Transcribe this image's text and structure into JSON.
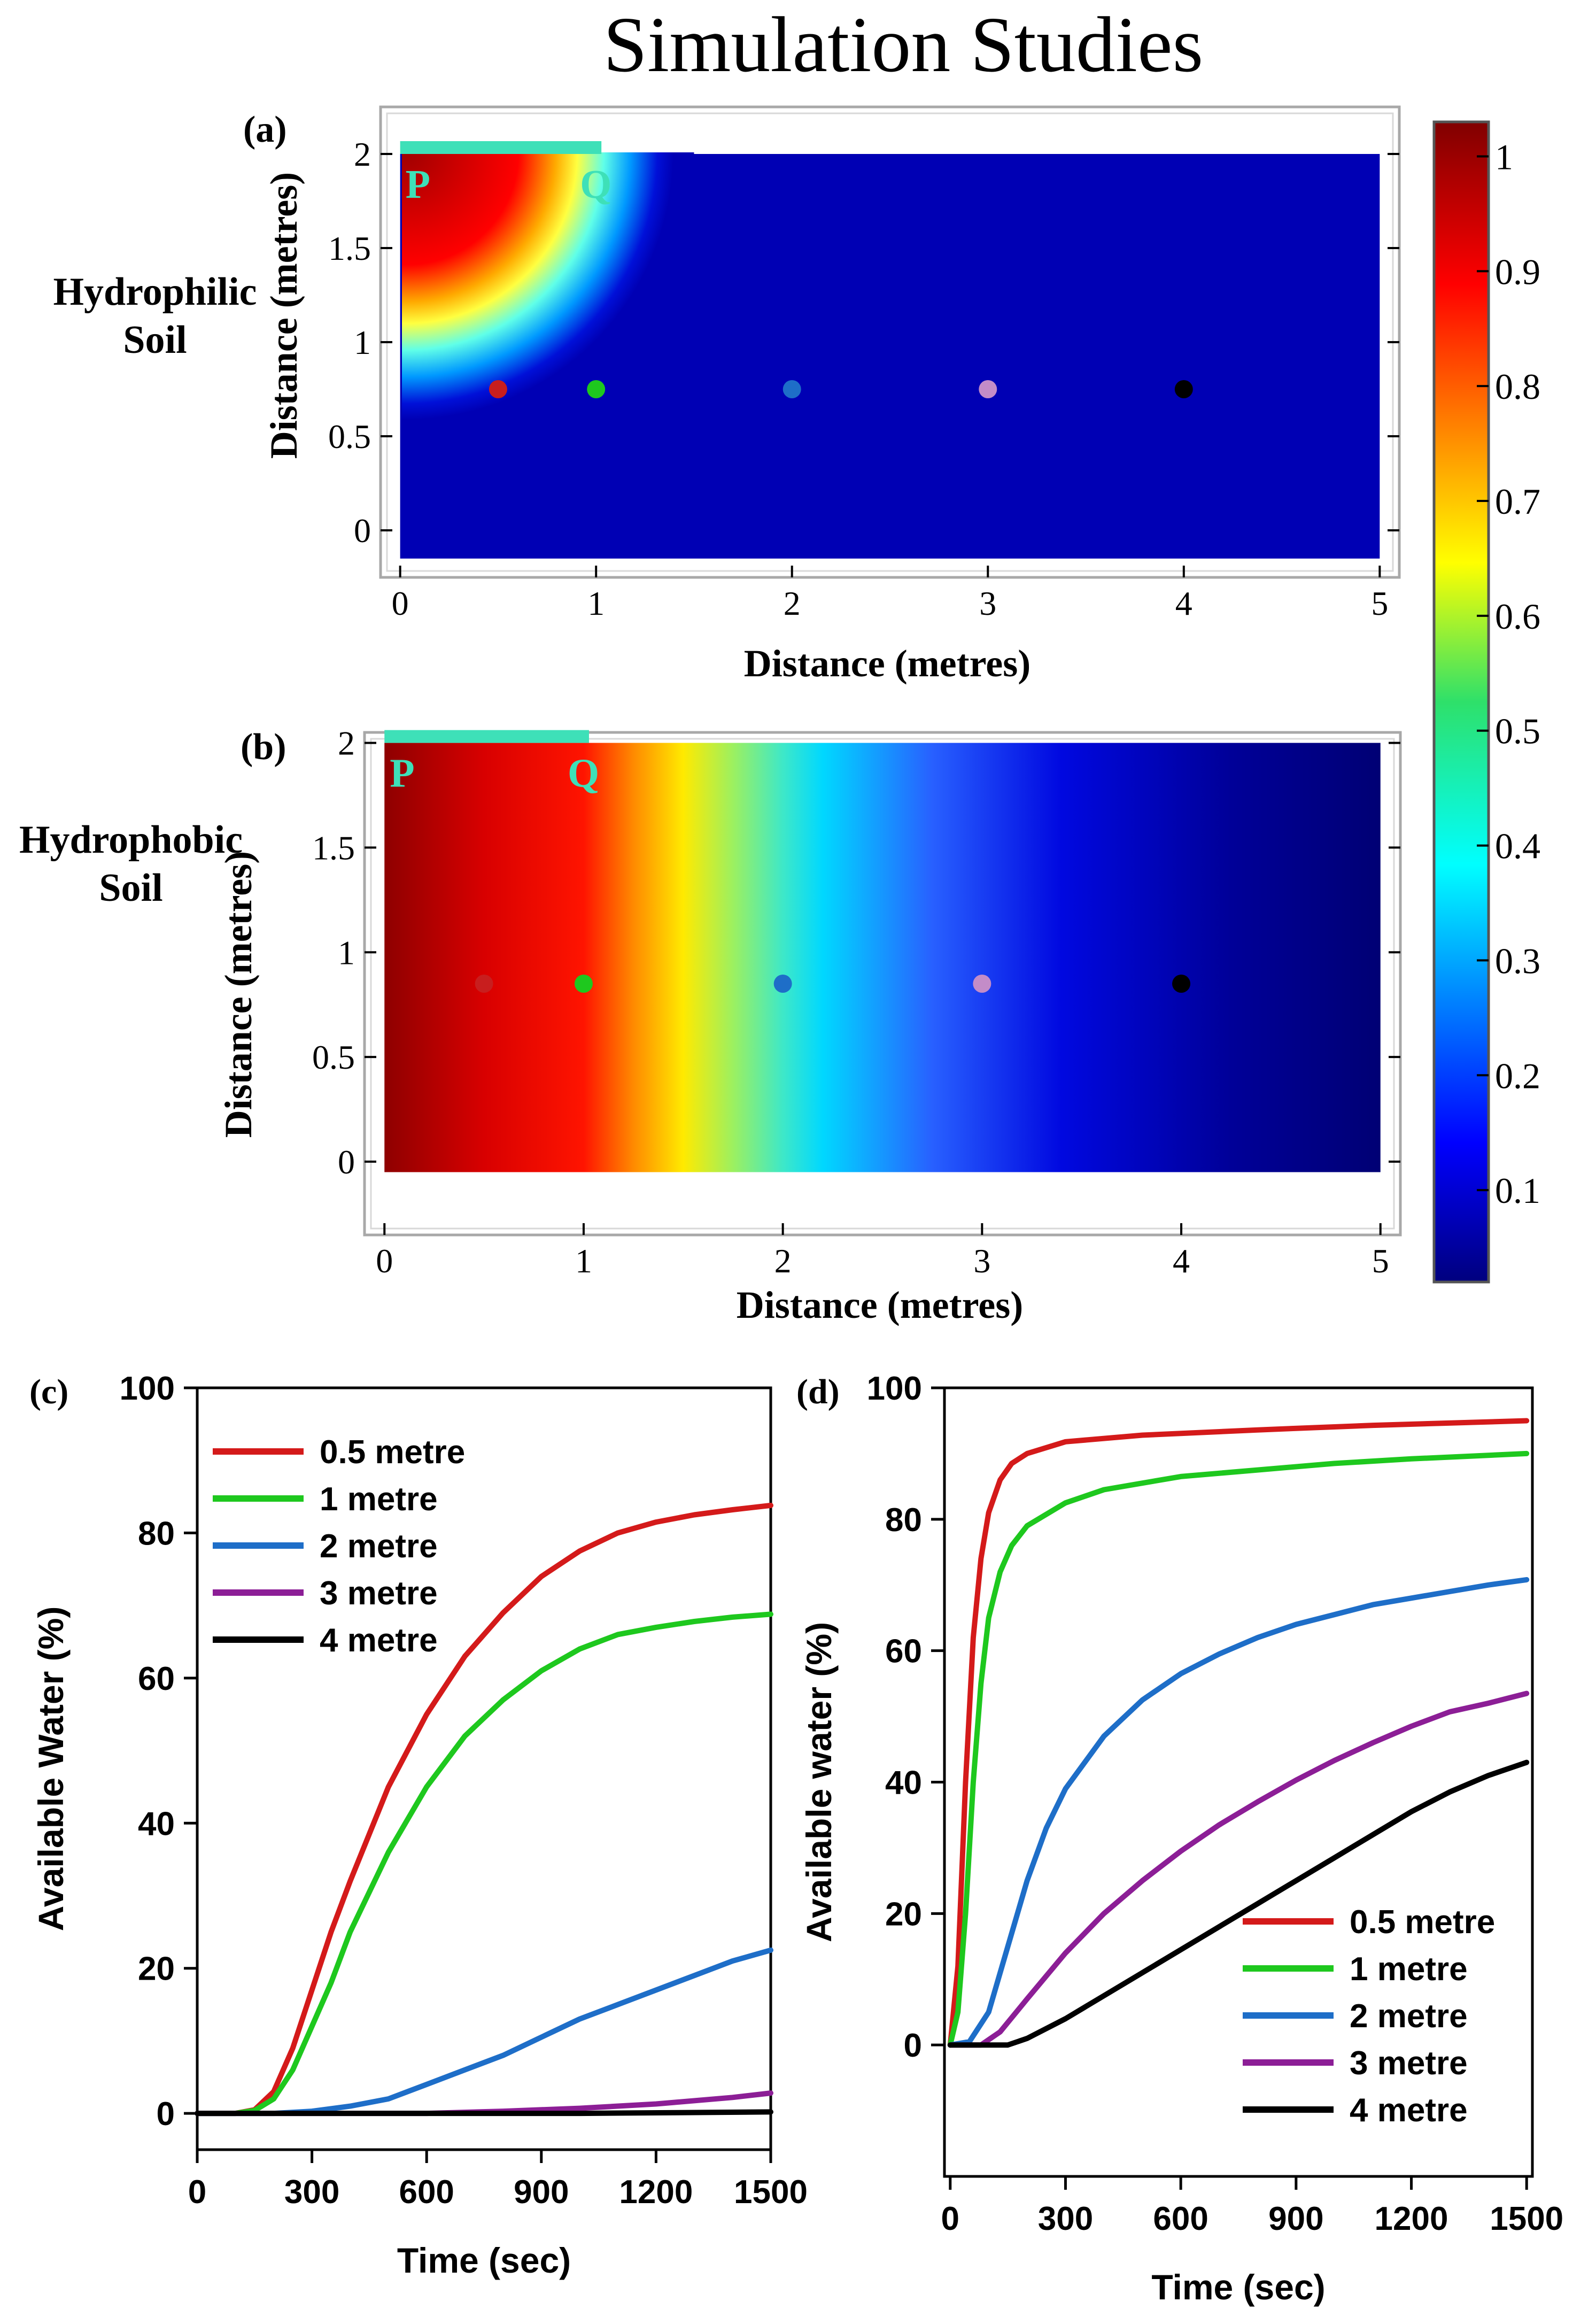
{
  "title": "Simulation Studies",
  "colorbar": {
    "ticks": [
      "1",
      "0.9",
      "0.8",
      "0.7",
      "0.6",
      "0.5",
      "0.4",
      "0.3",
      "0.2",
      "0.1"
    ],
    "tick_values": [
      1,
      0.9,
      0.8,
      0.7,
      0.6,
      0.5,
      0.4,
      0.3,
      0.2,
      0.1
    ],
    "range": [
      0.02,
      1.03
    ]
  },
  "colors": {
    "accent_bar": "#3ee0b8",
    "series": [
      "#d41a1a",
      "#1ec81e",
      "#1e6ec8",
      "#8c1e96",
      "#000000"
    ],
    "dots": [
      "#c81e1e",
      "#1ec81e",
      "#1e6ec8",
      "#c38cc8",
      "#000000"
    ]
  },
  "chart_data": [
    {
      "id": "a",
      "type": "heatmap",
      "panel_label": "(a)",
      "row_label": [
        "Hydrophilic",
        "Soil"
      ],
      "xlabel": "Distance (metres)",
      "ylabel": "Distance (metres)",
      "xticks": [
        "0",
        "1",
        "2",
        "3",
        "4",
        "5"
      ],
      "yticks": [
        "0",
        "0.5",
        "1",
        "1.5",
        "2"
      ],
      "xlim": [
        -0.1,
        5.1
      ],
      "ylim": [
        -0.25,
        2.25
      ],
      "domain_x": [
        0,
        5
      ],
      "domain_y": [
        -0.15,
        2
      ],
      "source_segment": {
        "from": 0,
        "to": 1,
        "labels": [
          "P",
          "Q"
        ]
      },
      "field": "localized saturation around source P-Q, decaying radially to ~0 beyond 1.5 m",
      "probe_points": [
        {
          "x": 0.5,
          "y": 0.75
        },
        {
          "x": 1,
          "y": 0.75
        },
        {
          "x": 2,
          "y": 0.75
        },
        {
          "x": 3,
          "y": 0.75
        },
        {
          "x": 4,
          "y": 0.75
        }
      ]
    },
    {
      "id": "b",
      "type": "heatmap",
      "panel_label": "(b)",
      "row_label": [
        "Hydrophobic",
        "Soil"
      ],
      "xlabel": "Distance (metres)",
      "ylabel": "Distance (metres)",
      "xticks": [
        "0",
        "1",
        "2",
        "3",
        "4",
        "5"
      ],
      "yticks": [
        "0",
        "0.5",
        "1",
        "1.5",
        "2"
      ],
      "xlim": [
        -0.1,
        5.1
      ],
      "ylim": [
        -0.35,
        2.05
      ],
      "domain_x": [
        0,
        5
      ],
      "domain_y": [
        -0.05,
        2
      ],
      "source_segment": {
        "from": 0,
        "to": 1,
        "labels": [
          "P",
          "Q"
        ]
      },
      "field": "lateral saturation front, ~1 at x=0 decreasing to ~0.02 at x=5",
      "probe_points": [
        {
          "x": 0.5,
          "y": 0.85
        },
        {
          "x": 1,
          "y": 0.85
        },
        {
          "x": 2,
          "y": 0.85
        },
        {
          "x": 3,
          "y": 0.85
        },
        {
          "x": 4,
          "y": 0.85
        }
      ]
    },
    {
      "id": "c",
      "type": "line",
      "panel_label": "(c)",
      "xlabel": "Time (sec)",
      "ylabel": "Available Water (%)",
      "xlim": [
        0,
        1500
      ],
      "ylim": [
        -5,
        100
      ],
      "xticks": [
        0,
        300,
        600,
        900,
        1200,
        1500
      ],
      "yticks": [
        0,
        20,
        40,
        60,
        80,
        100
      ],
      "legend_position": "top-left",
      "series": [
        {
          "name": "0.5 metre",
          "points": [
            [
              0,
              0
            ],
            [
              100,
              0
            ],
            [
              150,
              0.5
            ],
            [
              200,
              3
            ],
            [
              250,
              9
            ],
            [
              300,
              17
            ],
            [
              350,
              25
            ],
            [
              400,
              32
            ],
            [
              500,
              45
            ],
            [
              600,
              55
            ],
            [
              700,
              63
            ],
            [
              800,
              69
            ],
            [
              900,
              74
            ],
            [
              1000,
              77.5
            ],
            [
              1100,
              80
            ],
            [
              1200,
              81.5
            ],
            [
              1300,
              82.5
            ],
            [
              1400,
              83.2
            ],
            [
              1500,
              83.8
            ]
          ]
        },
        {
          "name": "1 metre",
          "points": [
            [
              0,
              0
            ],
            [
              100,
              0
            ],
            [
              150,
              0.4
            ],
            [
              200,
              2
            ],
            [
              250,
              6
            ],
            [
              300,
              12
            ],
            [
              350,
              18
            ],
            [
              400,
              25
            ],
            [
              500,
              36
            ],
            [
              600,
              45
            ],
            [
              700,
              52
            ],
            [
              800,
              57
            ],
            [
              900,
              61
            ],
            [
              1000,
              64
            ],
            [
              1100,
              66
            ],
            [
              1200,
              67
            ],
            [
              1300,
              67.8
            ],
            [
              1400,
              68.4
            ],
            [
              1500,
              68.8
            ]
          ]
        },
        {
          "name": "2 metre",
          "points": [
            [
              0,
              0
            ],
            [
              200,
              0
            ],
            [
              300,
              0.3
            ],
            [
              400,
              1
            ],
            [
              500,
              2
            ],
            [
              600,
              4
            ],
            [
              700,
              6
            ],
            [
              800,
              8
            ],
            [
              900,
              10.5
            ],
            [
              1000,
              13
            ],
            [
              1100,
              15
            ],
            [
              1200,
              17
            ],
            [
              1300,
              19
            ],
            [
              1400,
              21
            ],
            [
              1500,
              22.5
            ]
          ]
        },
        {
          "name": "3 metre",
          "points": [
            [
              0,
              0
            ],
            [
              600,
              0
            ],
            [
              800,
              0.3
            ],
            [
              1000,
              0.7
            ],
            [
              1200,
              1.3
            ],
            [
              1400,
              2.2
            ],
            [
              1500,
              2.8
            ]
          ]
        },
        {
          "name": "4 metre",
          "points": [
            [
              0,
              0
            ],
            [
              1000,
              0
            ],
            [
              1500,
              0.2
            ]
          ]
        }
      ]
    },
    {
      "id": "d",
      "type": "line",
      "panel_label": "(d)",
      "xlabel": "Time (sec)",
      "ylabel": "Available water (%)",
      "xlim": [
        -15,
        1515
      ],
      "ylim": [
        -20,
        100
      ],
      "xticks": [
        0,
        300,
        600,
        900,
        1200,
        1500
      ],
      "yticks": [
        0,
        20,
        40,
        60,
        80,
        100
      ],
      "legend_position": "bottom-right",
      "series": [
        {
          "name": "0.5 metre",
          "points": [
            [
              0,
              0
            ],
            [
              20,
              12
            ],
            [
              40,
              40
            ],
            [
              60,
              62
            ],
            [
              80,
              74
            ],
            [
              100,
              81
            ],
            [
              130,
              86
            ],
            [
              160,
              88.5
            ],
            [
              200,
              90
            ],
            [
              300,
              91.8
            ],
            [
              500,
              92.8
            ],
            [
              800,
              93.6
            ],
            [
              1100,
              94.3
            ],
            [
              1500,
              95
            ]
          ]
        },
        {
          "name": "1 metre",
          "points": [
            [
              0,
              0
            ],
            [
              20,
              5
            ],
            [
              40,
              20
            ],
            [
              60,
              40
            ],
            [
              80,
              55
            ],
            [
              100,
              65
            ],
            [
              130,
              72
            ],
            [
              160,
              76
            ],
            [
              200,
              79
            ],
            [
              300,
              82.5
            ],
            [
              400,
              84.5
            ],
            [
              600,
              86.5
            ],
            [
              800,
              87.5
            ],
            [
              1000,
              88.5
            ],
            [
              1200,
              89.2
            ],
            [
              1500,
              90
            ]
          ]
        },
        {
          "name": "2 metre",
          "points": [
            [
              0,
              0
            ],
            [
              50,
              0.5
            ],
            [
              100,
              5
            ],
            [
              150,
              15
            ],
            [
              200,
              25
            ],
            [
              250,
              33
            ],
            [
              300,
              39
            ],
            [
              400,
              47
            ],
            [
              500,
              52.5
            ],
            [
              600,
              56.5
            ],
            [
              700,
              59.5
            ],
            [
              800,
              62
            ],
            [
              900,
              64
            ],
            [
              1000,
              65.5
            ],
            [
              1100,
              67
            ],
            [
              1200,
              68
            ],
            [
              1300,
              69
            ],
            [
              1400,
              70
            ],
            [
              1500,
              70.8
            ]
          ]
        },
        {
          "name": "3 metre",
          "points": [
            [
              0,
              0
            ],
            [
              80,
              0
            ],
            [
              130,
              2
            ],
            [
              200,
              7
            ],
            [
              300,
              14
            ],
            [
              400,
              20
            ],
            [
              500,
              25
            ],
            [
              600,
              29.5
            ],
            [
              700,
              33.5
            ],
            [
              800,
              37
            ],
            [
              900,
              40.3
            ],
            [
              1000,
              43.3
            ],
            [
              1100,
              46
            ],
            [
              1200,
              48.5
            ],
            [
              1300,
              50.7
            ],
            [
              1400,
              52
            ],
            [
              1500,
              53.5
            ]
          ]
        },
        {
          "name": "4 metre",
          "points": [
            [
              0,
              0
            ],
            [
              150,
              0
            ],
            [
              200,
              1
            ],
            [
              300,
              4
            ],
            [
              400,
              7.5
            ],
            [
              500,
              11
            ],
            [
              600,
              14.5
            ],
            [
              700,
              18
            ],
            [
              800,
              21.5
            ],
            [
              900,
              25
            ],
            [
              1000,
              28.5
            ],
            [
              1100,
              32
            ],
            [
              1200,
              35.5
            ],
            [
              1300,
              38.5
            ],
            [
              1400,
              41
            ],
            [
              1500,
              43
            ]
          ]
        }
      ]
    }
  ]
}
